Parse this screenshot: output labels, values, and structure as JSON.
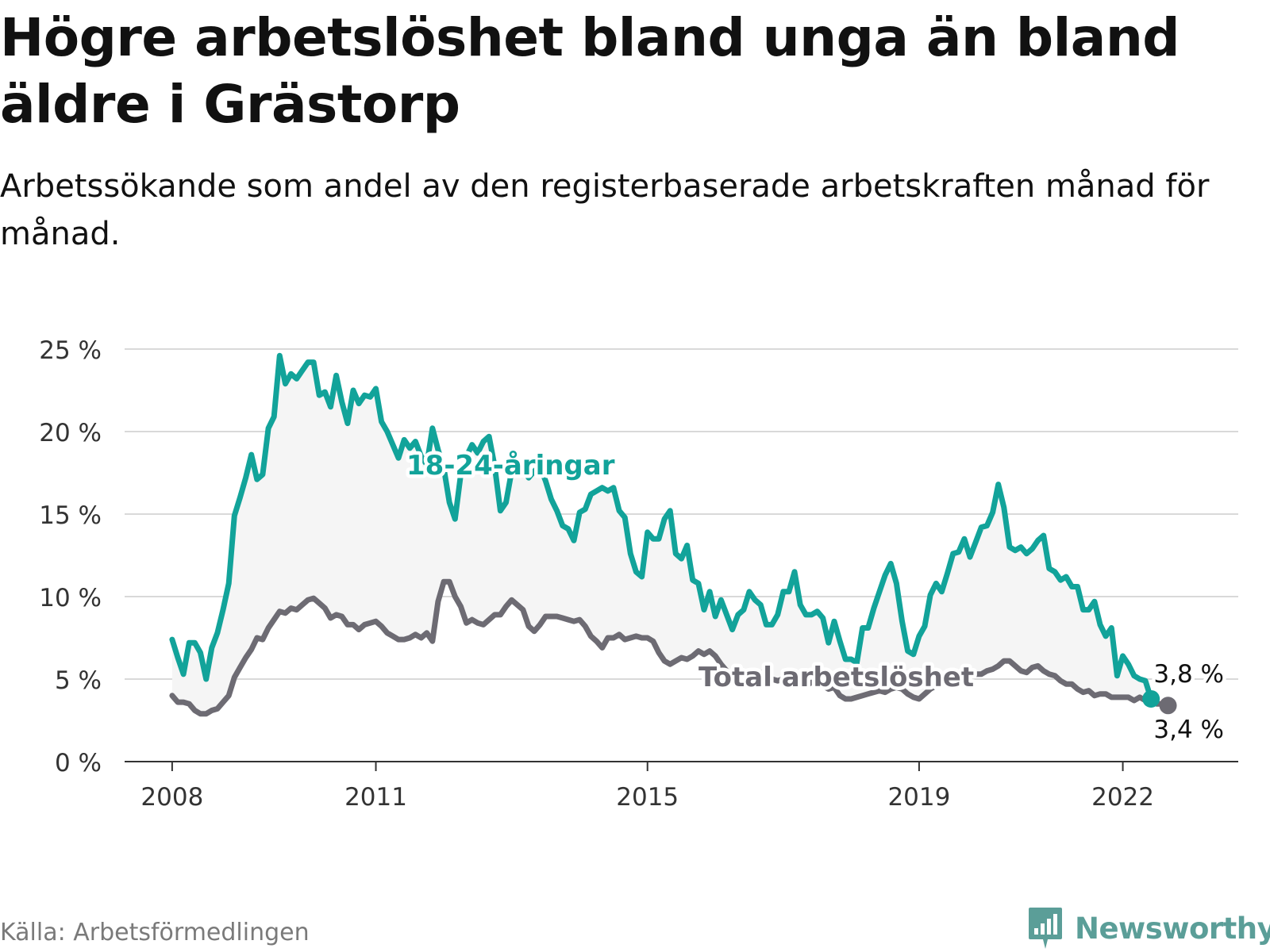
{
  "title": "Högre arbetslöshet bland unga än bland äldre i Grästorp",
  "subtitle": "Arbetssökande som andel av den registerbaserade arbetskraften månad för månad.",
  "source": "Källa: Arbetsförmedlingen",
  "brand": "Newsworthy",
  "colors": {
    "youth": "#12a39a",
    "total": "#6d6b73",
    "band": "#f5f5f5",
    "grid": "#d9d9d9",
    "axis": "#333333",
    "brand": "#5b9e98"
  },
  "chart_data": {
    "type": "line",
    "title": "Högre arbetslöshet bland unga än bland äldre i Grästorp",
    "xlabel": "",
    "ylabel": "",
    "x_start": 2008.0,
    "x_step": 0.08333,
    "xlim": [
      2007.3,
      2023.7
    ],
    "ylim": [
      0,
      25
    ],
    "y_ticks": [
      0,
      5,
      10,
      15,
      20,
      25
    ],
    "y_tick_labels": [
      "0 %",
      "5 %",
      "10 %",
      "15 %",
      "20 %",
      "25 %"
    ],
    "x_ticks": [
      2008,
      2011,
      2015,
      2019,
      2022
    ],
    "x_tick_labels": [
      "2008",
      "2011",
      "2015",
      "2019",
      "2022"
    ],
    "grid": true,
    "legend": "inline labels",
    "series": [
      {
        "name": "18-24-åringar",
        "label": "18-24-åringar",
        "end_label": "3,8 %",
        "values": [
          7.4,
          6.3,
          5.3,
          7.2,
          7.2,
          6.6,
          5.0,
          6.9,
          7.8,
          9.2,
          10.8,
          14.9,
          16.0,
          17.2,
          18.6,
          17.1,
          17.4,
          20.2,
          20.9,
          24.6,
          22.9,
          23.5,
          23.2,
          23.7,
          24.2,
          24.2,
          22.2,
          22.4,
          21.5,
          23.4,
          21.8,
          20.5,
          22.5,
          21.7,
          22.2,
          22.1,
          22.6,
          20.6,
          20.0,
          19.2,
          18.4,
          19.5,
          19.0,
          19.4,
          18.5,
          18.0,
          20.2,
          18.9,
          17.8,
          15.7,
          14.7,
          17.4,
          18.5,
          19.2,
          18.7,
          19.4,
          19.7,
          17.9,
          15.2,
          15.7,
          17.6,
          18.0,
          17.7,
          17.2,
          17.6,
          17.9,
          17.0,
          15.9,
          15.2,
          14.3,
          14.1,
          13.4,
          15.1,
          15.3,
          16.2,
          16.4,
          16.6,
          16.4,
          16.6,
          15.2,
          14.8,
          12.6,
          11.5,
          11.2,
          13.9,
          13.5,
          13.5,
          14.7,
          15.2,
          12.6,
          12.3,
          13.1,
          11.0,
          10.8,
          9.2,
          10.3,
          8.8,
          9.8,
          8.9,
          8.0,
          8.9,
          9.2,
          10.3,
          9.8,
          9.5,
          8.3,
          8.3,
          8.9,
          10.3,
          10.3,
          11.5,
          9.5,
          8.9,
          8.9,
          9.1,
          8.7,
          7.2,
          8.5,
          7.3,
          6.2,
          6.2,
          6.0,
          8.1,
          8.1,
          9.3,
          10.3,
          11.3,
          12.0,
          10.8,
          8.5,
          6.7,
          6.5,
          7.6,
          8.2,
          10.1,
          10.8,
          10.3,
          11.4,
          12.6,
          12.7,
          13.5,
          12.4,
          13.3,
          14.2,
          14.3,
          15.1,
          16.8,
          15.4,
          13.0,
          12.8,
          13.0,
          12.6,
          12.9,
          13.4,
          13.7,
          11.7,
          11.5,
          11.0,
          11.2,
          10.6,
          10.6,
          9.2,
          9.2,
          9.7,
          8.3,
          7.6,
          8.1,
          5.2,
          6.4,
          5.9,
          5.2,
          5.0,
          4.9,
          3.8
        ]
      },
      {
        "name": "Total arbetslöshet",
        "label": "Total arbetslöshet",
        "end_label": "3,4 %",
        "values": [
          4.0,
          3.6,
          3.6,
          3.5,
          3.1,
          2.9,
          2.9,
          3.1,
          3.2,
          3.6,
          4.0,
          5.1,
          5.7,
          6.3,
          6.8,
          7.5,
          7.4,
          8.1,
          8.6,
          9.1,
          9.0,
          9.3,
          9.2,
          9.5,
          9.8,
          9.9,
          9.6,
          9.3,
          8.7,
          8.9,
          8.8,
          8.3,
          8.3,
          8.0,
          8.3,
          8.4,
          8.5,
          8.2,
          7.8,
          7.6,
          7.4,
          7.4,
          7.5,
          7.7,
          7.5,
          7.8,
          7.3,
          9.7,
          10.9,
          10.9,
          10.0,
          9.4,
          8.4,
          8.6,
          8.4,
          8.3,
          8.6,
          8.9,
          8.9,
          9.4,
          9.8,
          9.5,
          9.2,
          8.2,
          7.9,
          8.3,
          8.8,
          8.8,
          8.8,
          8.7,
          8.6,
          8.5,
          8.6,
          8.2,
          7.6,
          7.3,
          6.9,
          7.5,
          7.5,
          7.7,
          7.4,
          7.5,
          7.6,
          7.5,
          7.5,
          7.3,
          6.6,
          6.1,
          5.9,
          6.1,
          6.3,
          6.2,
          6.4,
          6.7,
          6.5,
          6.7,
          6.4,
          5.9,
          5.5,
          5.2,
          5.5,
          5.5,
          5.4,
          5.2,
          5.4,
          5.3,
          5.0,
          4.9,
          5.0,
          5.1,
          4.9,
          4.7,
          4.6,
          4.8,
          4.8,
          4.6,
          4.4,
          4.5,
          4.0,
          3.8,
          3.8,
          3.9,
          4.0,
          4.1,
          4.2,
          4.3,
          4.2,
          4.4,
          4.5,
          4.4,
          4.1,
          3.9,
          3.8,
          4.1,
          4.4,
          4.6,
          4.8,
          5.0,
          5.0,
          5.0,
          5.1,
          5.2,
          5.3,
          5.3,
          5.5,
          5.6,
          5.8,
          6.1,
          6.1,
          5.8,
          5.5,
          5.4,
          5.7,
          5.8,
          5.5,
          5.3,
          5.2,
          4.9,
          4.7,
          4.7,
          4.4,
          4.2,
          4.3,
          4.0,
          4.1,
          4.1,
          3.9,
          3.9,
          3.9,
          3.9,
          3.7,
          3.9,
          3.7,
          3.7,
          3.5,
          3.5,
          3.4
        ]
      }
    ]
  }
}
